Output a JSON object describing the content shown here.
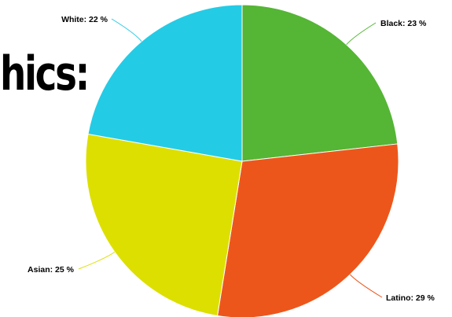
{
  "slide": {
    "heading_fragment": "hics:"
  },
  "chart_data": {
    "type": "pie",
    "title": "",
    "slices": [
      {
        "name": "Black",
        "label": "Black: 23 %",
        "value": 23,
        "color": "#55b535"
      },
      {
        "name": "Latino",
        "label": "Latino: 29 %",
        "value": 29,
        "color": "#ed561b"
      },
      {
        "name": "Asian",
        "label": "Asian: 25 %",
        "value": 25,
        "color": "#dddf00"
      },
      {
        "name": "White",
        "label": "White: 22 %",
        "value": 22,
        "color": "#24cbe5"
      }
    ],
    "legend": "none",
    "data_labels": "outside with connectors"
  }
}
